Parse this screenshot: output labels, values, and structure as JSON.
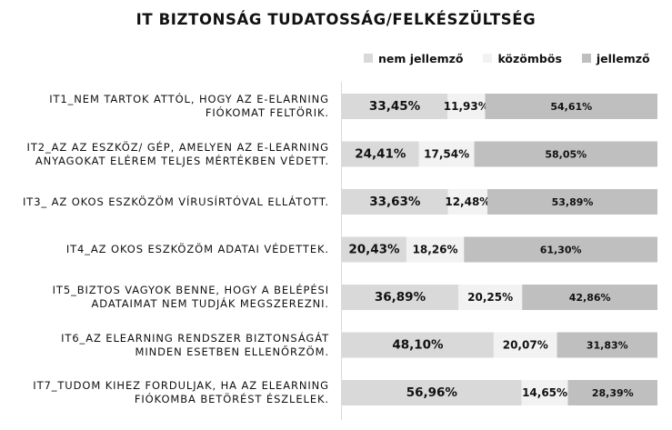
{
  "chart_data": {
    "type": "bar",
    "orientation": "horizontal",
    "stacked": true,
    "percent": true,
    "title": "IT BIZTONSÁG TUDATOSSÁG/FELKÉSZÜLTSÉG",
    "legend_position": "top-right",
    "categories": [
      [
        "IT1_NEM TARTOK ATTÓL, HOGY AZ E-ELARNING",
        "FIÓKOMAT FELTÖRIK."
      ],
      [
        "IT2_AZ AZ ESZKÖZ/ GÉP, AMELYEN AZ E-LEARNING",
        "ANYAGOKAT ELÉREM TELJES MÉRTÉKBEN VÉDETT."
      ],
      [
        "IT3_ AZ OKOS ESZKÖZÖM VÍRUSÍRTÓVAL ELLÁTOTT."
      ],
      [
        "IT4_AZ OKOS ESZKÖZÖM ADATAI VÉDETTEK."
      ],
      [
        "IT5_BIZTOS VAGYOK BENNE, HOGY A BELÉPÉSI",
        "ADATAIMAT NEM TUDJÁK MEGSZEREZNI."
      ],
      [
        "IT6_AZ ELEARNING RENDSZER BIZTONSÁGÁT",
        "MINDEN ESETBEN ELLENŐRZÖM."
      ],
      [
        "IT7_TUDOM KIHEZ FORDULJAK, HA AZ ELEARNING",
        "FIÓKOMBA BETÖRÉST ÉSZLELEK."
      ]
    ],
    "series": [
      {
        "name": "nem jellemző",
        "color": "#d9d9d9",
        "values": [
          33.45,
          24.41,
          33.63,
          20.43,
          36.89,
          48.1,
          56.96
        ],
        "labels": [
          "33,45%",
          "24,41%",
          "33,63%",
          "20,43%",
          "36,89%",
          "48,10%",
          "56,96%"
        ]
      },
      {
        "name": "közömbös",
        "color": "#f2f2f2",
        "values": [
          11.93,
          17.54,
          12.48,
          18.26,
          20.25,
          20.07,
          14.65
        ],
        "labels": [
          "11,93%",
          "17,54%",
          "12,48%",
          "18,26%",
          "20,25%",
          "20,07%",
          "14,65%"
        ]
      },
      {
        "name": "jellemző",
        "color": "#bfbfbf",
        "values": [
          54.61,
          58.05,
          53.89,
          61.3,
          42.86,
          31.83,
          28.39
        ],
        "labels": [
          "54,61%",
          "58,05%",
          "53,89%",
          "61,30%",
          "42,86%",
          "31,83%",
          "28,39%"
        ]
      }
    ],
    "xlim": [
      0,
      100
    ],
    "grid": false
  }
}
